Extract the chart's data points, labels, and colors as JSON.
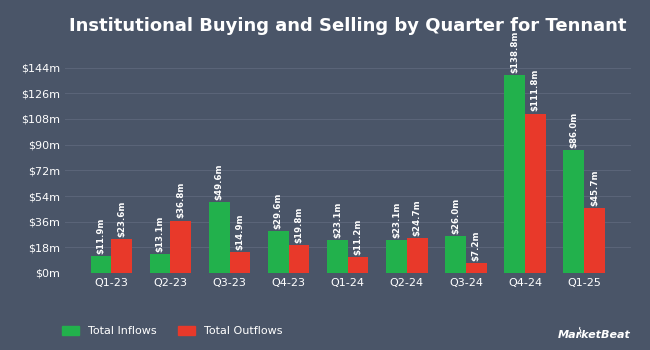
{
  "title": "Institutional Buying and Selling by Quarter for Tennant",
  "quarters": [
    "Q1-23",
    "Q2-23",
    "Q3-23",
    "Q4-23",
    "Q1-24",
    "Q2-24",
    "Q3-24",
    "Q4-24",
    "Q1-25"
  ],
  "inflows": [
    11.9,
    13.1,
    49.6,
    29.6,
    23.1,
    23.1,
    26.0,
    138.8,
    86.0
  ],
  "outflows": [
    23.6,
    36.8,
    14.9,
    19.8,
    11.2,
    24.7,
    7.2,
    111.8,
    45.7
  ],
  "inflow_labels": [
    "$11.9m",
    "$13.1m",
    "$49.6m",
    "$29.6m",
    "$23.1m",
    "$23.1m",
    "$26.0m",
    "$138.8m",
    "$86.0m"
  ],
  "outflow_labels": [
    "$23.6m",
    "$36.8m",
    "$14.9m",
    "$19.8m",
    "$11.2m",
    "$24.7m",
    "$7.2m",
    "$111.8m",
    "$45.7m"
  ],
  "inflow_color": "#22b14c",
  "outflow_color": "#e8392a",
  "background_color": "#4a5568",
  "grid_color": "#5a6478",
  "text_color": "#ffffff",
  "bar_width": 0.35,
  "ylim": [
    0,
    162
  ],
  "yticks": [
    0,
    18,
    36,
    54,
    72,
    90,
    108,
    126,
    144
  ],
  "ytick_labels": [
    "$0m",
    "$18m",
    "$36m",
    "$54m",
    "$72m",
    "$90m",
    "$108m",
    "$126m",
    "$144m"
  ],
  "legend_inflow": "Total Inflows",
  "legend_outflow": "Total Outflows",
  "title_fontsize": 13,
  "label_fontsize": 6.2,
  "tick_fontsize": 8
}
